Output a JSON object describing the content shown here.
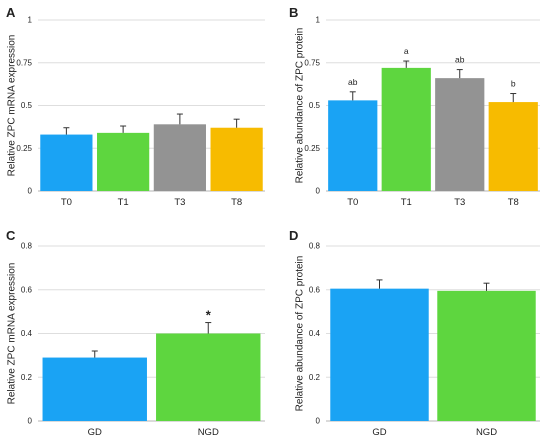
{
  "chart_data": [
    {
      "type": "bar",
      "panel": "A",
      "ylabel": "Relative ZPC mRNA expression",
      "xlabel": "",
      "categories": [
        "T0",
        "T1",
        "T3",
        "T8"
      ],
      "values": [
        0.33,
        0.34,
        0.39,
        0.37
      ],
      "errors": [
        0.04,
        0.04,
        0.06,
        0.05
      ],
      "annotations": [
        "",
        "",
        "",
        ""
      ],
      "colors": [
        "#1aa3f4",
        "#5ed63f",
        "#939393",
        "#f7bb00"
      ],
      "ylim": [
        0,
        1
      ],
      "yticks": [
        "0",
        "0.25",
        "0.5",
        "0.75",
        "1"
      ],
      "grid": true
    },
    {
      "type": "bar",
      "panel": "B",
      "ylabel": "Relative abundance of ZPC protein",
      "xlabel": "",
      "categories": [
        "T0",
        "T1",
        "T3",
        "T8"
      ],
      "values": [
        0.53,
        0.72,
        0.66,
        0.52
      ],
      "errors": [
        0.05,
        0.04,
        0.05,
        0.05
      ],
      "annotations": [
        "ab",
        "a",
        "ab",
        "b"
      ],
      "colors": [
        "#1aa3f4",
        "#5ed63f",
        "#939393",
        "#f7bb00"
      ],
      "ylim": [
        0,
        1
      ],
      "yticks": [
        "0",
        "0.25",
        "0.5",
        "0.75",
        "1"
      ],
      "grid": true
    },
    {
      "type": "bar",
      "panel": "C",
      "ylabel": "Relative ZPC mRNA expression",
      "xlabel": "",
      "categories": [
        "GD",
        "NGD"
      ],
      "values": [
        0.29,
        0.4
      ],
      "errors": [
        0.03,
        0.05
      ],
      "annotations": [
        "",
        "*"
      ],
      "colors": [
        "#1aa3f4",
        "#5ed63f"
      ],
      "ylim": [
        0,
        0.8
      ],
      "yticks": [
        "0",
        "0.2",
        "0.4",
        "0.6",
        "0.8"
      ],
      "grid": true
    },
    {
      "type": "bar",
      "panel": "D",
      "ylabel": "Relative abundance of ZPC protein",
      "xlabel": "",
      "categories": [
        "GD",
        "NGD"
      ],
      "values": [
        0.605,
        0.595
      ],
      "errors": [
        0.04,
        0.035
      ],
      "annotations": [
        "",
        ""
      ],
      "colors": [
        "#1aa3f4",
        "#5ed63f"
      ],
      "ylim": [
        0,
        0.8
      ],
      "yticks": [
        "0",
        "0.2",
        "0.4",
        "0.6",
        "0.8"
      ],
      "grid": true
    }
  ]
}
